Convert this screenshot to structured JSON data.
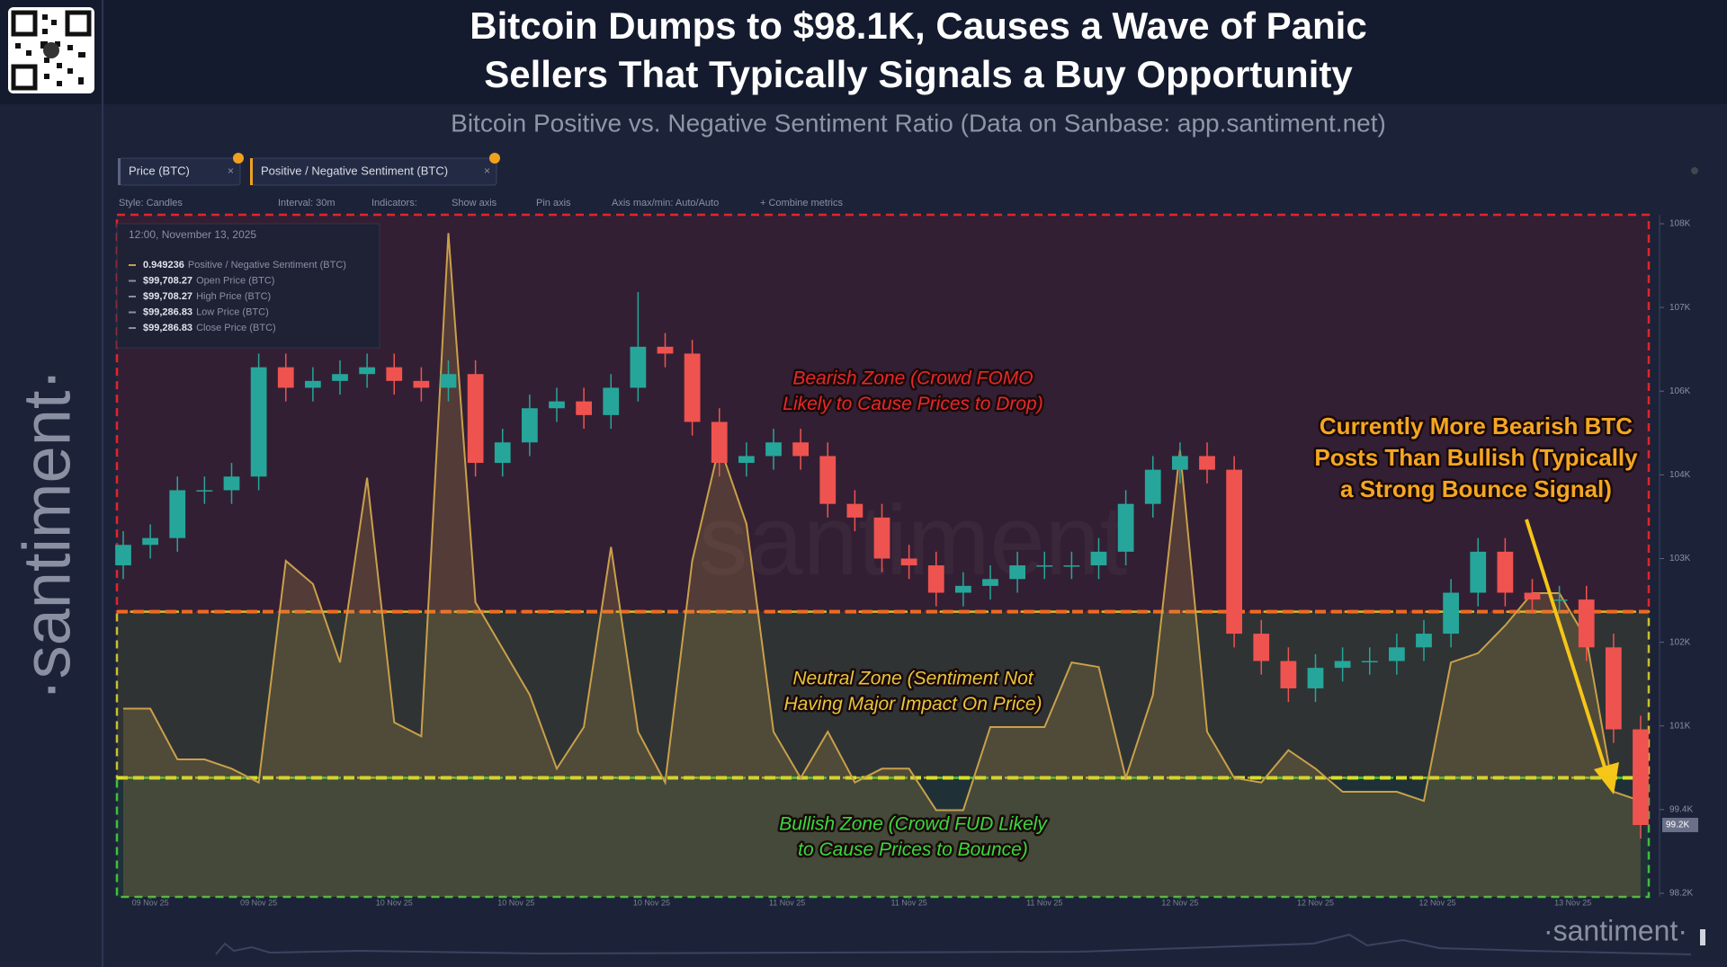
{
  "header": {
    "title_lines": [
      "Bitcoin Dumps to $98.1K, Causes a Wave of Panic",
      "Sellers That Typically Signals a Buy Opportunity"
    ],
    "subtitle": "Bitcoin Positive vs. Negative Sentiment Ratio (Data on Sanbase: app.santiment.net)"
  },
  "sidebar": {
    "brand": "·santiment·"
  },
  "toolbar": {
    "tabs": [
      "Price (BTC)",
      "Positive / Negative Sentiment (BTC)"
    ],
    "items": [
      "Style: Candles",
      "Interval: 30m",
      "Indicators:",
      "Show axis",
      "Pin axis",
      "Axis max/min: Auto/Auto",
      "+ Combine metrics"
    ]
  },
  "tooltip": {
    "time": "12:00, November 13, 2025",
    "rows": [
      {
        "value": "0.949236",
        "label": "Positive / Negative Sentiment (BTC)"
      },
      {
        "value": "$99,708.27",
        "label": "Open Price (BTC)"
      },
      {
        "value": "$99,708.27",
        "label": "High Price (BTC)"
      },
      {
        "value": "$99,286.83",
        "label": "Low Price (BTC)"
      },
      {
        "value": "$99,286.83",
        "label": "Close Price (BTC)"
      }
    ]
  },
  "watermark": "santiment",
  "footer_brand": "·santiment·",
  "chart_data": [
    {
      "type": "candlestick",
      "x": [
        0,
        2,
        4,
        6,
        8,
        10,
        12,
        14,
        16,
        18,
        20,
        22,
        24,
        26,
        28,
        30,
        32,
        34,
        36,
        38,
        40,
        42,
        44,
        46,
        48,
        50,
        52,
        54,
        56,
        58,
        60,
        62,
        64,
        66,
        68,
        70,
        72,
        74,
        76,
        78,
        80,
        82,
        84,
        86,
        88,
        90,
        92,
        94,
        96,
        98,
        100,
        102,
        104,
        106,
        108,
        110,
        112
      ],
      "open": [
        103.0,
        103.3,
        103.4,
        104.1,
        104.1,
        104.3,
        105.9,
        105.6,
        105.7,
        105.8,
        105.9,
        105.7,
        105.6,
        105.8,
        104.5,
        104.8,
        105.3,
        105.4,
        105.2,
        105.6,
        106.2,
        106.1,
        105.1,
        104.5,
        104.6,
        104.8,
        104.6,
        103.9,
        103.7,
        103.1,
        103.0,
        102.6,
        102.7,
        102.8,
        103.0,
        103.0,
        103.0,
        103.2,
        103.9,
        104.4,
        104.6,
        104.4,
        102.0,
        101.6,
        101.2,
        101.5,
        101.6,
        101.6,
        101.8,
        102.0,
        102.6,
        103.2,
        102.6,
        102.5,
        102.5,
        101.8,
        100.6
      ],
      "high": [
        103.5,
        103.6,
        104.3,
        104.3,
        104.5,
        106.1,
        106.1,
        105.9,
        106.0,
        106.1,
        106.1,
        105.9,
        106.0,
        106.0,
        105.0,
        105.5,
        105.6,
        105.6,
        105.8,
        107.0,
        106.4,
        106.3,
        105.3,
        104.8,
        105.0,
        105.0,
        104.8,
        104.1,
        103.9,
        103.3,
        103.2,
        102.9,
        103.0,
        103.2,
        103.2,
        103.2,
        103.4,
        104.1,
        104.6,
        104.8,
        104.8,
        104.6,
        102.2,
        101.8,
        101.7,
        101.8,
        101.8,
        102.0,
        102.2,
        102.8,
        103.4,
        103.4,
        102.8,
        102.7,
        102.7,
        102.0,
        100.8
      ],
      "low": [
        102.8,
        103.1,
        103.2,
        103.9,
        103.9,
        104.1,
        105.4,
        105.4,
        105.5,
        105.6,
        105.5,
        105.4,
        105.4,
        104.3,
        104.3,
        104.6,
        105.1,
        105.0,
        105.0,
        105.4,
        105.9,
        104.9,
        104.3,
        104.3,
        104.4,
        104.4,
        103.7,
        103.5,
        102.9,
        102.8,
        102.4,
        102.4,
        102.5,
        102.6,
        102.8,
        102.8,
        102.8,
        103.0,
        103.7,
        104.2,
        104.2,
        101.8,
        101.4,
        101.0,
        101.0,
        101.3,
        101.4,
        101.4,
        101.6,
        101.8,
        102.4,
        102.4,
        102.3,
        102.3,
        101.6,
        100.4,
        99.0
      ],
      "close": [
        103.3,
        103.4,
        104.1,
        104.1,
        104.3,
        105.9,
        105.6,
        105.7,
        105.8,
        105.9,
        105.7,
        105.6,
        105.8,
        104.5,
        104.8,
        105.3,
        105.4,
        105.2,
        105.6,
        106.2,
        106.1,
        105.1,
        104.5,
        104.6,
        104.8,
        104.6,
        103.9,
        103.7,
        103.1,
        103.0,
        102.6,
        102.7,
        102.8,
        103.0,
        103.0,
        103.0,
        103.2,
        103.9,
        104.4,
        104.6,
        104.4,
        102.0,
        101.6,
        101.2,
        101.5,
        101.6,
        101.6,
        101.8,
        102.0,
        102.6,
        103.2,
        102.6,
        102.5,
        102.5,
        101.8,
        100.6,
        99.2
      ],
      "up_color": "#26a69a",
      "down_color": "#ef5350",
      "xlim": [
        0,
        112
      ],
      "xticks": [
        {
          "value": 2,
          "label": "09 Nov 25"
        },
        {
          "value": 10,
          "label": "09 Nov 25"
        },
        {
          "value": 20,
          "label": "10 Nov 25"
        },
        {
          "value": 29,
          "label": "10 Nov 25"
        },
        {
          "value": 39,
          "label": "10 Nov 25"
        },
        {
          "value": 49,
          "label": "11 Nov 25"
        },
        {
          "value": 58,
          "label": "11 Nov 25"
        },
        {
          "value": 68,
          "label": "11 Nov 25"
        },
        {
          "value": 78,
          "label": "12 Nov 25"
        },
        {
          "value": 88,
          "label": "12 Nov 25"
        },
        {
          "value": 97,
          "label": "12 Nov 25"
        },
        {
          "value": 107,
          "label": "13 Nov 25"
        }
      ],
      "ylim": [
        98.2,
        108
      ],
      "yticks": [
        {
          "value": 108,
          "label": "108K"
        },
        {
          "value": 106.775,
          "label": "107K"
        },
        {
          "value": 105.55,
          "label": "106K"
        },
        {
          "value": 104.325,
          "label": "104K"
        },
        {
          "value": 103.1,
          "label": "103K"
        },
        {
          "value": 101.875,
          "label": "102K"
        },
        {
          "value": 100.65,
          "label": "101K"
        },
        {
          "value": 99.425,
          "label": "99.4K"
        },
        {
          "value": 98.2,
          "label": "98.2K"
        }
      ],
      "current_price_label": "99.2K",
      "annotations": [
        [
          "Bearish Zone (Crowd FOMO",
          "Likely to Cause Prices to Drop)"
        ],
        [
          "Neutral Zone (Sentiment Not",
          "Having Major Impact On Price)"
        ],
        [
          "Bullish Zone (Crowd FUD Likely",
          "to Cause Prices to Bounce)"
        ],
        [
          "Currently More Bearish BTC",
          "Posts Than Bullish (Typically",
          "a Strong Bounce Signal)"
        ]
      ]
    },
    {
      "type": "area",
      "x": [
        0,
        2,
        4,
        6,
        8,
        10,
        12,
        14,
        16,
        18,
        20,
        22,
        24,
        26,
        28,
        30,
        32,
        34,
        36,
        38,
        40,
        42,
        44,
        46,
        48,
        50,
        52,
        54,
        56,
        58,
        60,
        62,
        64,
        66,
        68,
        70,
        72,
        74,
        76,
        78,
        80,
        82,
        84,
        86,
        88,
        90,
        92,
        94,
        96,
        98,
        100,
        102,
        104,
        106,
        108,
        110,
        112
      ],
      "series": [
        {
          "name": "Positive / Negative Sentiment (BTC)",
          "color": "#c9a04a",
          "axis": "y2",
          "values": [
            1.15,
            1.15,
            1.04,
            1.04,
            1.02,
            0.99,
            1.47,
            1.42,
            1.25,
            1.65,
            1.12,
            1.09,
            2.18,
            1.38,
            1.28,
            1.18,
            1.02,
            1.11,
            1.5,
            1.1,
            0.99,
            1.47,
            1.72,
            1.55,
            1.1,
            1.0,
            1.1,
            0.99,
            1.02,
            1.02,
            0.93,
            0.93,
            1.11,
            1.11,
            1.11,
            1.25,
            1.24,
            1.0,
            1.18,
            1.71,
            1.1,
            1.0,
            0.99,
            1.06,
            1.02,
            0.97,
            0.97,
            0.97,
            0.95,
            1.25,
            1.27,
            1.33,
            1.4,
            1.4,
            1.3,
            0.97,
            0.95
          ]
        }
      ],
      "xlim": [
        0,
        112
      ],
      "y2lim": [
        0.75,
        2.2
      ],
      "zone_thresholds": [
        1.0,
        1.36
      ]
    }
  ]
}
